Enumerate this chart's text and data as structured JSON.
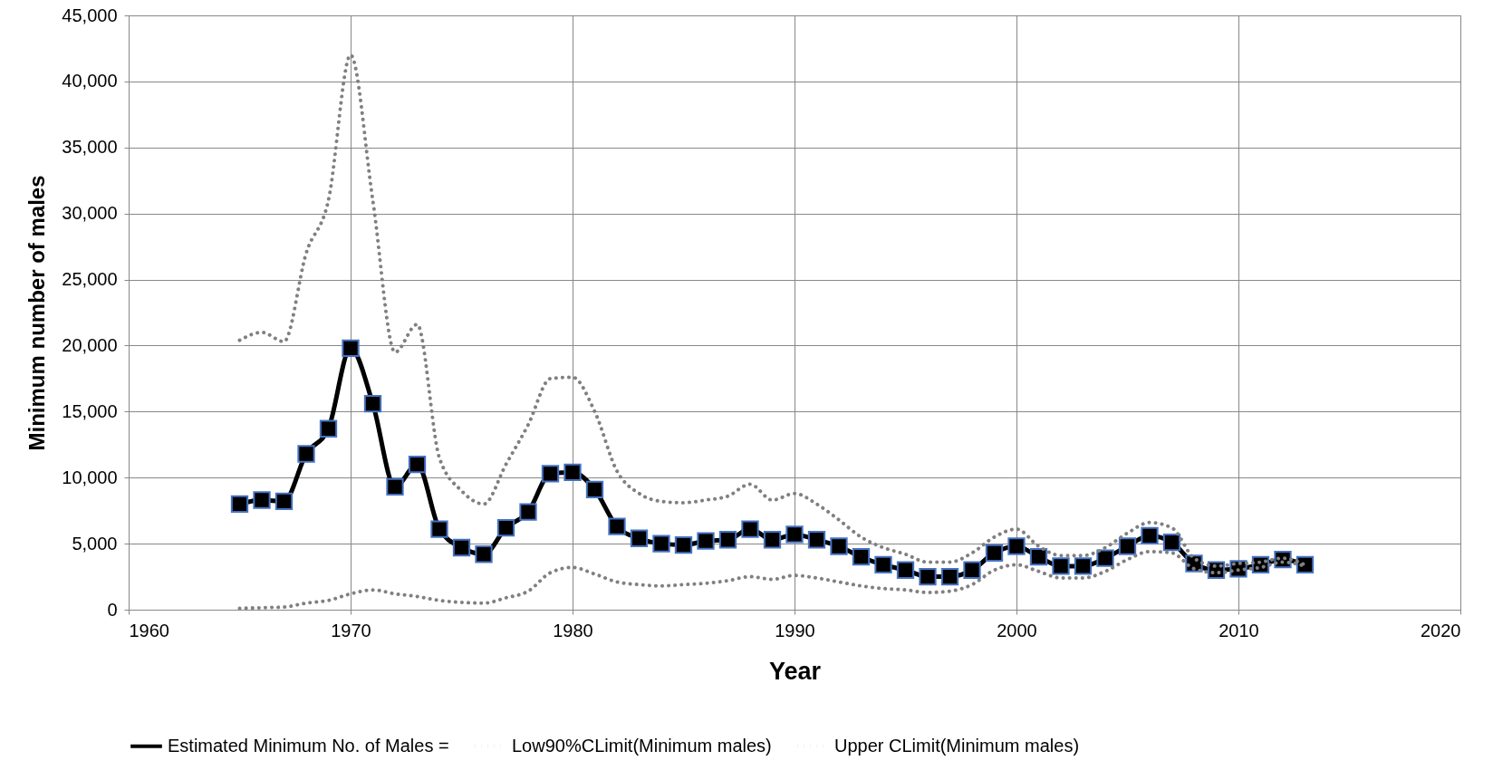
{
  "chart_data": {
    "type": "line",
    "xlabel": "Year",
    "ylabel": "Minimum number of males",
    "x": [
      1965,
      1966,
      1967,
      1968,
      1969,
      1970,
      1971,
      1972,
      1973,
      1974,
      1975,
      1976,
      1977,
      1978,
      1979,
      1980,
      1981,
      1982,
      1983,
      1984,
      1985,
      1986,
      1987,
      1988,
      1989,
      1990,
      1991,
      1992,
      1993,
      1994,
      1995,
      1996,
      1997,
      1998,
      1999,
      2000,
      2001,
      2002,
      2003,
      2004,
      2005,
      2006,
      2007,
      2008,
      2009,
      2010,
      2011,
      2012,
      2013
    ],
    "series": [
      {
        "name": "Estimated Minimum No. of Males =",
        "color": "#000000",
        "marker": "square",
        "line_style": "solid",
        "values": [
          8000,
          8300,
          8200,
          11800,
          13700,
          19800,
          15600,
          9300,
          11000,
          6100,
          4700,
          4200,
          6200,
          7400,
          10300,
          10400,
          9100,
          6300,
          5400,
          5000,
          4900,
          5200,
          5300,
          6100,
          5300,
          5700,
          5300,
          4800,
          4000,
          3400,
          3000,
          2500,
          2500,
          3000,
          4300,
          4800,
          4000,
          3300,
          3300,
          3900,
          4800,
          5600,
          5100,
          3500,
          3000,
          3100,
          3400,
          3800,
          3400
        ]
      },
      {
        "name": "Low90%CLimit(Minimum males)",
        "color": "#808080",
        "marker": "none",
        "line_style": "dotted",
        "values": [
          100,
          150,
          200,
          500,
          700,
          1200,
          1500,
          1200,
          1000,
          700,
          550,
          500,
          900,
          1400,
          2800,
          3200,
          2700,
          2100,
          1900,
          1800,
          1900,
          2000,
          2200,
          2500,
          2300,
          2600,
          2400,
          2100,
          1800,
          1600,
          1500,
          1300,
          1400,
          1900,
          3000,
          3400,
          2900,
          2400,
          2400,
          2900,
          3800,
          4400,
          4300,
          3100,
          2800,
          3000,
          3200,
          3600,
          3300
        ]
      },
      {
        "name": "Upper CLimit(Minimum males)",
        "color": "#808080",
        "marker": "none",
        "line_style": "dotted",
        "values": [
          20400,
          21000,
          20300,
          27000,
          31000,
          42000,
          31000,
          19500,
          21600,
          11500,
          9000,
          8000,
          11000,
          14000,
          17500,
          17600,
          15000,
          10500,
          8800,
          8200,
          8100,
          8300,
          8600,
          9500,
          8300,
          8800,
          8000,
          6800,
          5500,
          4700,
          4200,
          3600,
          3600,
          4300,
          5500,
          6100,
          4800,
          4100,
          4100,
          4700,
          5800,
          6600,
          6200,
          3900,
          3300,
          3500,
          3600,
          3900,
          3400
        ]
      }
    ],
    "xlim": [
      1960,
      2020
    ],
    "xticks": [
      1960,
      1970,
      1980,
      1990,
      2000,
      2010,
      2020
    ],
    "ylim": [
      0,
      45000
    ],
    "yticks": [
      0,
      {
        "value": 5000,
        "label": "5,000"
      },
      {
        "value": 10000,
        "label": "10,000"
      },
      {
        "value": 15000,
        "label": "15,000"
      },
      {
        "value": 20000,
        "label": "20,000"
      },
      {
        "value": 25000,
        "label": "25,000"
      },
      {
        "value": 30000,
        "label": "30,000"
      },
      {
        "value": 35000,
        "label": "35,000"
      },
      {
        "value": 40000,
        "label": "40,000"
      },
      {
        "value": 45000,
        "label": "45,000"
      }
    ],
    "grid": true,
    "legend": "bottom"
  }
}
